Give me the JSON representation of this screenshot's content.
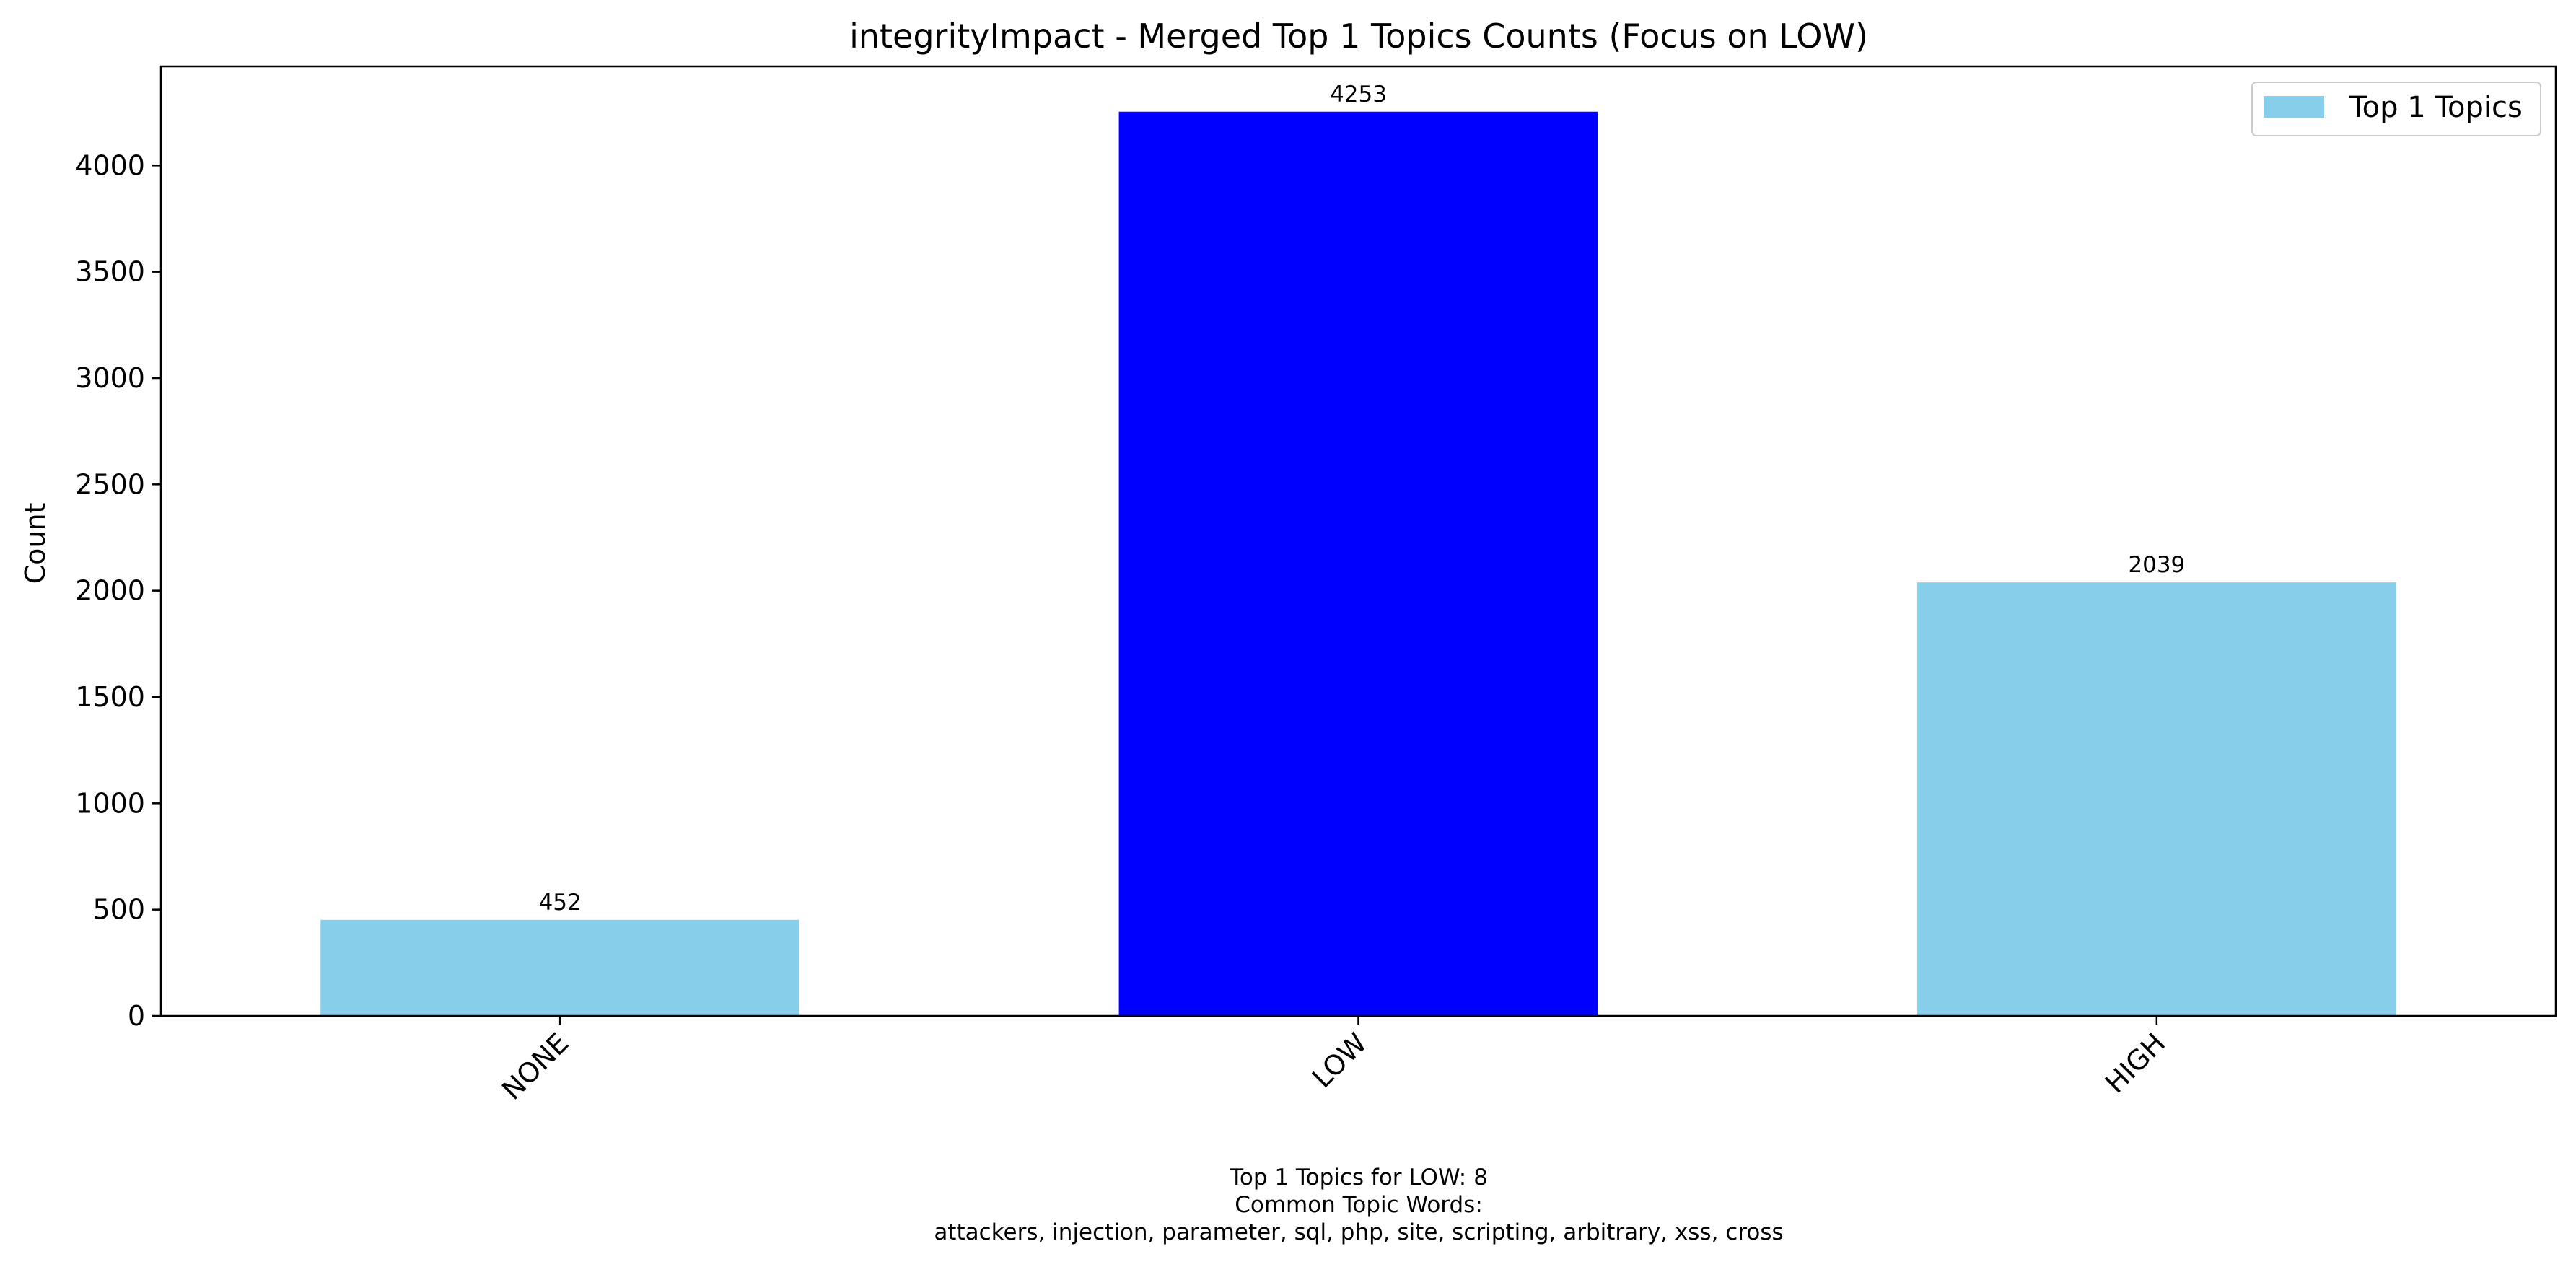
{
  "chart_data": {
    "type": "bar",
    "title": "integrityImpact - Merged Top 1 Topics Counts (Focus on LOW)",
    "xlabel": "",
    "ylabel": "Count",
    "categories": [
      "NONE",
      "LOW",
      "HIGH"
    ],
    "series": [
      {
        "name": "Top 1 Topics",
        "values": [
          452,
          4253,
          2039
        ]
      }
    ],
    "bar_colors": [
      "#87ceeb",
      "#0000ff",
      "#87ceeb"
    ],
    "highlight_category": "LOW",
    "ylim": [
      0,
      4466
    ],
    "yticks": [
      0,
      500,
      1000,
      1500,
      2000,
      2500,
      3000,
      3500,
      4000
    ],
    "grid": false,
    "legend_position": "top-right",
    "caption_lines": [
      "Top 1 Topics for LOW: 8",
      "Common Topic Words:",
      "attackers,  injection,  parameter,  sql,  php,  site,  scripting,  arbitrary,  xss,  cross"
    ]
  }
}
